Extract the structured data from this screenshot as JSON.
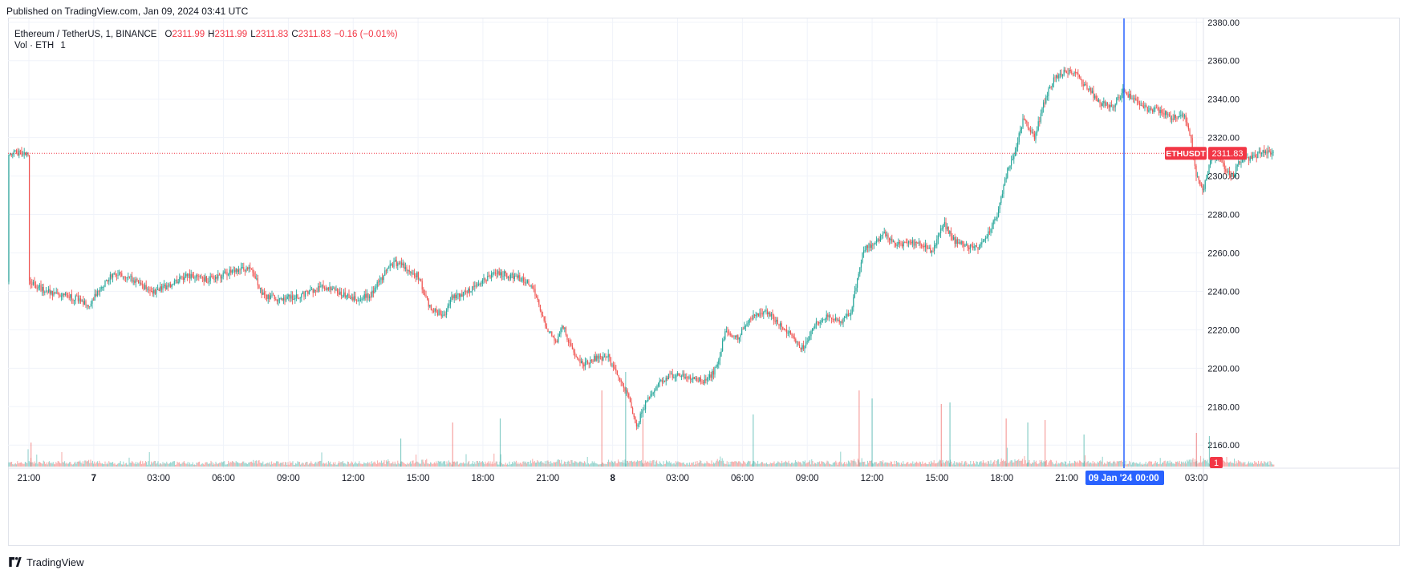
{
  "header": {
    "published": "Published on TradingView.com, Jan 09, 2024 03:41 UTC"
  },
  "legend": {
    "symbol": "Ethereum / TetherUS, 1, BINANCE",
    "open_label": "O",
    "open": "2311.99",
    "high_label": "H",
    "high": "2311.99",
    "low_label": "L",
    "low": "2311.83",
    "close_label": "C",
    "close": "2311.83",
    "change": "−0.16 (−0.01%)",
    "volume_label": "Vol · ETH",
    "volume_value": "1"
  },
  "footer": {
    "brand": "TradingView"
  },
  "colors": {
    "up": "#26a69a",
    "down": "#ef5350",
    "price_line": "#f23645",
    "crosshair": "#2962ff",
    "grid": "#f0f3fa"
  },
  "chart_data": {
    "type": "candlestick",
    "symbol": "ETHUSDT",
    "interval": "1",
    "y_axis": {
      "ticks": [
        2160,
        2180,
        2200,
        2220,
        2240,
        2260,
        2280,
        2300,
        2320,
        2340,
        2360,
        2380
      ],
      "range": [
        2148,
        2382
      ]
    },
    "x_axis": {
      "ticks": [
        "21:00",
        "7",
        "03:00",
        "06:00",
        "09:00",
        "12:00",
        "15:00",
        "18:00",
        "21:00",
        "8",
        "03:00",
        "06:00",
        "09:00",
        "12:00",
        "15:00",
        "18:00",
        "21:00",
        "00:00",
        "03:00"
      ]
    },
    "last_price": 2311.83,
    "last_price_label": "ETHUSDT",
    "last_price_text": "2311.83",
    "volume_last": "1",
    "crosshair_label": "09 Jan '24",
    "crosshair_time": "00:00",
    "price_path": [
      {
        "h": 0.0,
        "p": 2245
      },
      {
        "h": 0.8,
        "p": 2240
      },
      {
        "h": 1.5,
        "p": 2238
      },
      {
        "h": 2.3,
        "p": 2236
      },
      {
        "h": 2.8,
        "p": 2232
      },
      {
        "h": 3.3,
        "p": 2242
      },
      {
        "h": 4.0,
        "p": 2250
      },
      {
        "h": 4.6,
        "p": 2248
      },
      {
        "h": 5.3,
        "p": 2242
      },
      {
        "h": 5.8,
        "p": 2240
      },
      {
        "h": 6.6,
        "p": 2244
      },
      {
        "h": 7.3,
        "p": 2248
      },
      {
        "h": 8.3,
        "p": 2246
      },
      {
        "h": 9.3,
        "p": 2250
      },
      {
        "h": 10.3,
        "p": 2252
      },
      {
        "h": 10.8,
        "p": 2238
      },
      {
        "h": 11.6,
        "p": 2236
      },
      {
        "h": 12.6,
        "p": 2238
      },
      {
        "h": 13.6,
        "p": 2242
      },
      {
        "h": 14.3,
        "p": 2240
      },
      {
        "h": 15.1,
        "p": 2236
      },
      {
        "h": 15.8,
        "p": 2238
      },
      {
        "h": 16.5,
        "p": 2250
      },
      {
        "h": 16.9,
        "p": 2255
      },
      {
        "h": 17.5,
        "p": 2252
      },
      {
        "h": 18.0,
        "p": 2248
      },
      {
        "h": 18.5,
        "p": 2232
      },
      {
        "h": 19.2,
        "p": 2227
      },
      {
        "h": 19.5,
        "p": 2236
      },
      {
        "h": 20.3,
        "p": 2240
      },
      {
        "h": 21.1,
        "p": 2246
      },
      {
        "h": 21.6,
        "p": 2250
      },
      {
        "h": 22.3,
        "p": 2248
      },
      {
        "h": 22.9,
        "p": 2246
      },
      {
        "h": 23.3,
        "p": 2242
      },
      {
        "h": 23.9,
        "p": 2222
      },
      {
        "h": 24.4,
        "p": 2214
      },
      {
        "h": 24.7,
        "p": 2222
      },
      {
        "h": 25.1,
        "p": 2210
      },
      {
        "h": 25.6,
        "p": 2202
      },
      {
        "h": 26.1,
        "p": 2205
      },
      {
        "h": 26.8,
        "p": 2206
      },
      {
        "h": 27.2,
        "p": 2196
      },
      {
        "h": 27.7,
        "p": 2186
      },
      {
        "h": 28.1,
        "p": 2170
      },
      {
        "h": 28.6,
        "p": 2184
      },
      {
        "h": 29.1,
        "p": 2192
      },
      {
        "h": 29.6,
        "p": 2196
      },
      {
        "h": 30.4,
        "p": 2196
      },
      {
        "h": 31.3,
        "p": 2193
      },
      {
        "h": 31.8,
        "p": 2200
      },
      {
        "h": 32.2,
        "p": 2218
      },
      {
        "h": 32.8,
        "p": 2216
      },
      {
        "h": 33.4,
        "p": 2226
      },
      {
        "h": 34.0,
        "p": 2230
      },
      {
        "h": 34.6,
        "p": 2224
      },
      {
        "h": 35.2,
        "p": 2218
      },
      {
        "h": 35.8,
        "p": 2210
      },
      {
        "h": 36.3,
        "p": 2222
      },
      {
        "h": 36.8,
        "p": 2227
      },
      {
        "h": 37.5,
        "p": 2224
      },
      {
        "h": 38.0,
        "p": 2228
      },
      {
        "h": 38.6,
        "p": 2262
      },
      {
        "h": 39.1,
        "p": 2265
      },
      {
        "h": 39.6,
        "p": 2270
      },
      {
        "h": 40.1,
        "p": 2264
      },
      {
        "h": 40.7,
        "p": 2266
      },
      {
        "h": 41.3,
        "p": 2264
      },
      {
        "h": 41.8,
        "p": 2260
      },
      {
        "h": 42.3,
        "p": 2276
      },
      {
        "h": 42.8,
        "p": 2266
      },
      {
        "h": 43.3,
        "p": 2264
      },
      {
        "h": 43.9,
        "p": 2262
      },
      {
        "h": 44.3,
        "p": 2268
      },
      {
        "h": 44.8,
        "p": 2280
      },
      {
        "h": 45.3,
        "p": 2305
      },
      {
        "h": 45.6,
        "p": 2312
      },
      {
        "h": 46.0,
        "p": 2330
      },
      {
        "h": 46.5,
        "p": 2320
      },
      {
        "h": 47.0,
        "p": 2340
      },
      {
        "h": 47.4,
        "p": 2350
      },
      {
        "h": 48.0,
        "p": 2355
      },
      {
        "h": 48.5,
        "p": 2352
      },
      {
        "h": 49.0,
        "p": 2345
      },
      {
        "h": 49.6,
        "p": 2338
      },
      {
        "h": 50.1,
        "p": 2336
      },
      {
        "h": 50.6,
        "p": 2344
      },
      {
        "h": 51.1,
        "p": 2340
      },
      {
        "h": 51.7,
        "p": 2335
      },
      {
        "h": 52.3,
        "p": 2334
      },
      {
        "h": 52.9,
        "p": 2330
      },
      {
        "h": 53.4,
        "p": 2332
      },
      {
        "h": 53.7,
        "p": 2322
      },
      {
        "h": 54.0,
        "p": 2300
      },
      {
        "h": 54.3,
        "p": 2292
      },
      {
        "h": 54.6,
        "p": 2306
      },
      {
        "h": 55.0,
        "p": 2312
      },
      {
        "h": 55.4,
        "p": 2302
      },
      {
        "h": 55.7,
        "p": 2300
      },
      {
        "h": 56.0,
        "p": 2308
      },
      {
        "h": 56.6,
        "p": 2310
      },
      {
        "h": 57.2,
        "p": 2313
      },
      {
        "h": 57.6,
        "p": 2311.83
      }
    ],
    "volume_spikes": [
      {
        "h": 0.1,
        "v": 30
      },
      {
        "h": 17.2,
        "v": 35
      },
      {
        "h": 19.6,
        "v": 55
      },
      {
        "h": 21.8,
        "v": 60
      },
      {
        "h": 26.5,
        "v": 95
      },
      {
        "h": 27.6,
        "v": 118
      },
      {
        "h": 28.4,
        "v": 60
      },
      {
        "h": 33.5,
        "v": 65
      },
      {
        "h": 38.4,
        "v": 95
      },
      {
        "h": 39.0,
        "v": 85
      },
      {
        "h": 42.2,
        "v": 78
      },
      {
        "h": 42.6,
        "v": 80
      },
      {
        "h": 45.2,
        "v": 60
      },
      {
        "h": 46.2,
        "v": 55
      },
      {
        "h": 47.0,
        "v": 58
      },
      {
        "h": 48.8,
        "v": 40
      },
      {
        "h": 54.0,
        "v": 42
      },
      {
        "h": 54.6,
        "v": 38
      }
    ]
  }
}
